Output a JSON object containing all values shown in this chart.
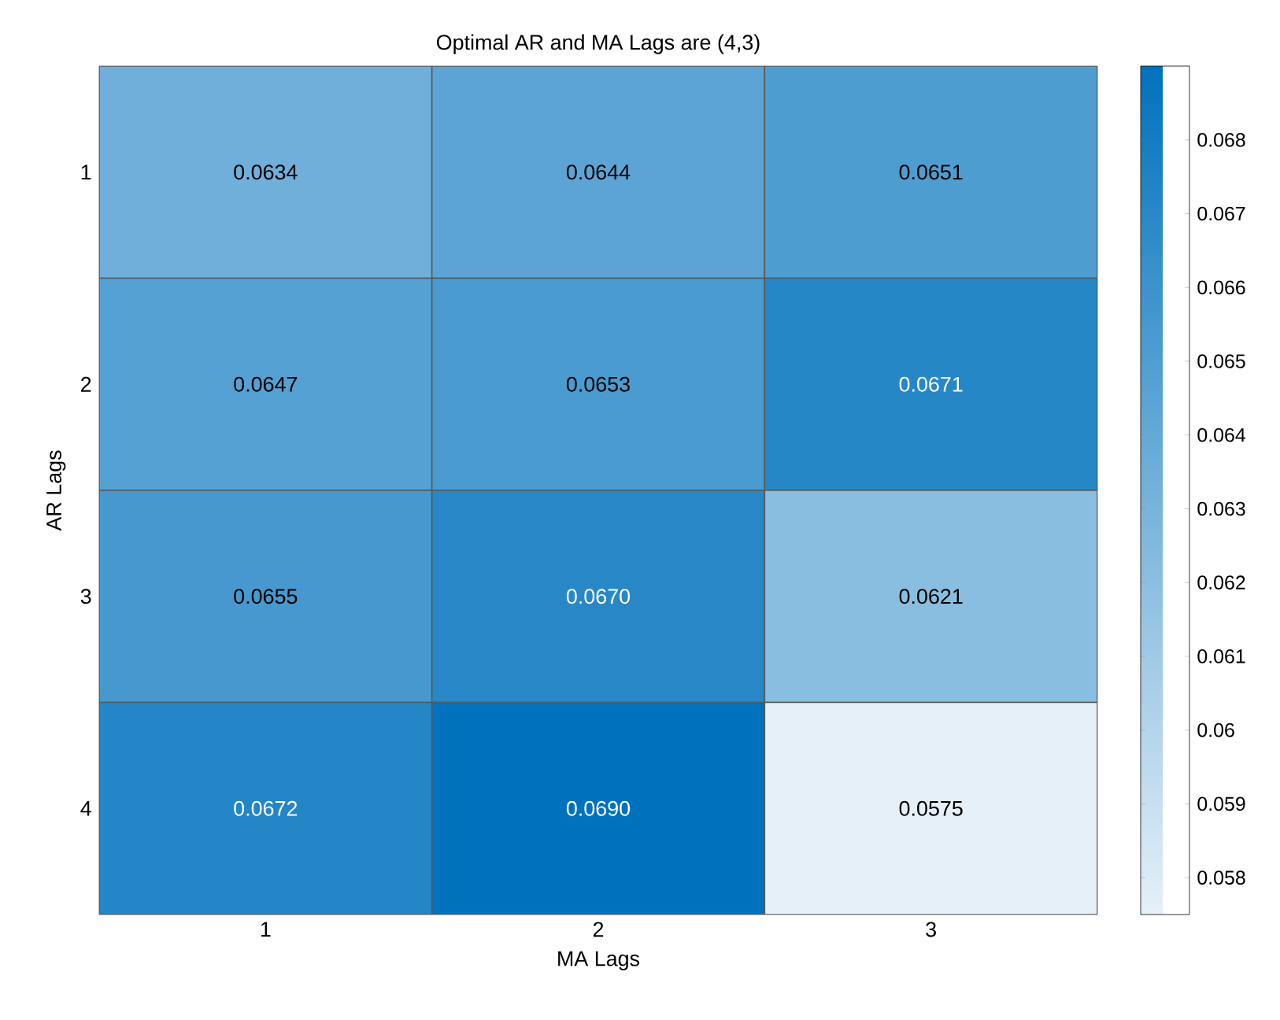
{
  "chart_data": {
    "type": "heatmap",
    "title": "Optimal AR and MA Lags are (4,3)",
    "xlabel": "MA Lags",
    "ylabel": "AR Lags",
    "categories": [
      "1",
      "2",
      "3"
    ],
    "y_categories": [
      "1",
      "2",
      "3",
      "4"
    ],
    "cells": [
      [
        0.0634,
        0.0644,
        0.0651
      ],
      [
        0.0647,
        0.0653,
        0.0671
      ],
      [
        0.0655,
        0.067,
        0.0621
      ],
      [
        0.0672,
        0.069,
        0.0575
      ]
    ],
    "cell_labels": [
      [
        "0.0634",
        "0.0644",
        "0.0651"
      ],
      [
        "0.0647",
        "0.0653",
        "0.0671"
      ],
      [
        "0.0655",
        "0.0670",
        "0.0621"
      ],
      [
        "0.0672",
        "0.0690",
        "0.0575"
      ]
    ],
    "clim": [
      0.0575,
      0.069
    ],
    "cticks": [
      0.058,
      0.059,
      0.06,
      0.061,
      0.062,
      0.063,
      0.064,
      0.065,
      0.066,
      0.067,
      0.068
    ]
  }
}
